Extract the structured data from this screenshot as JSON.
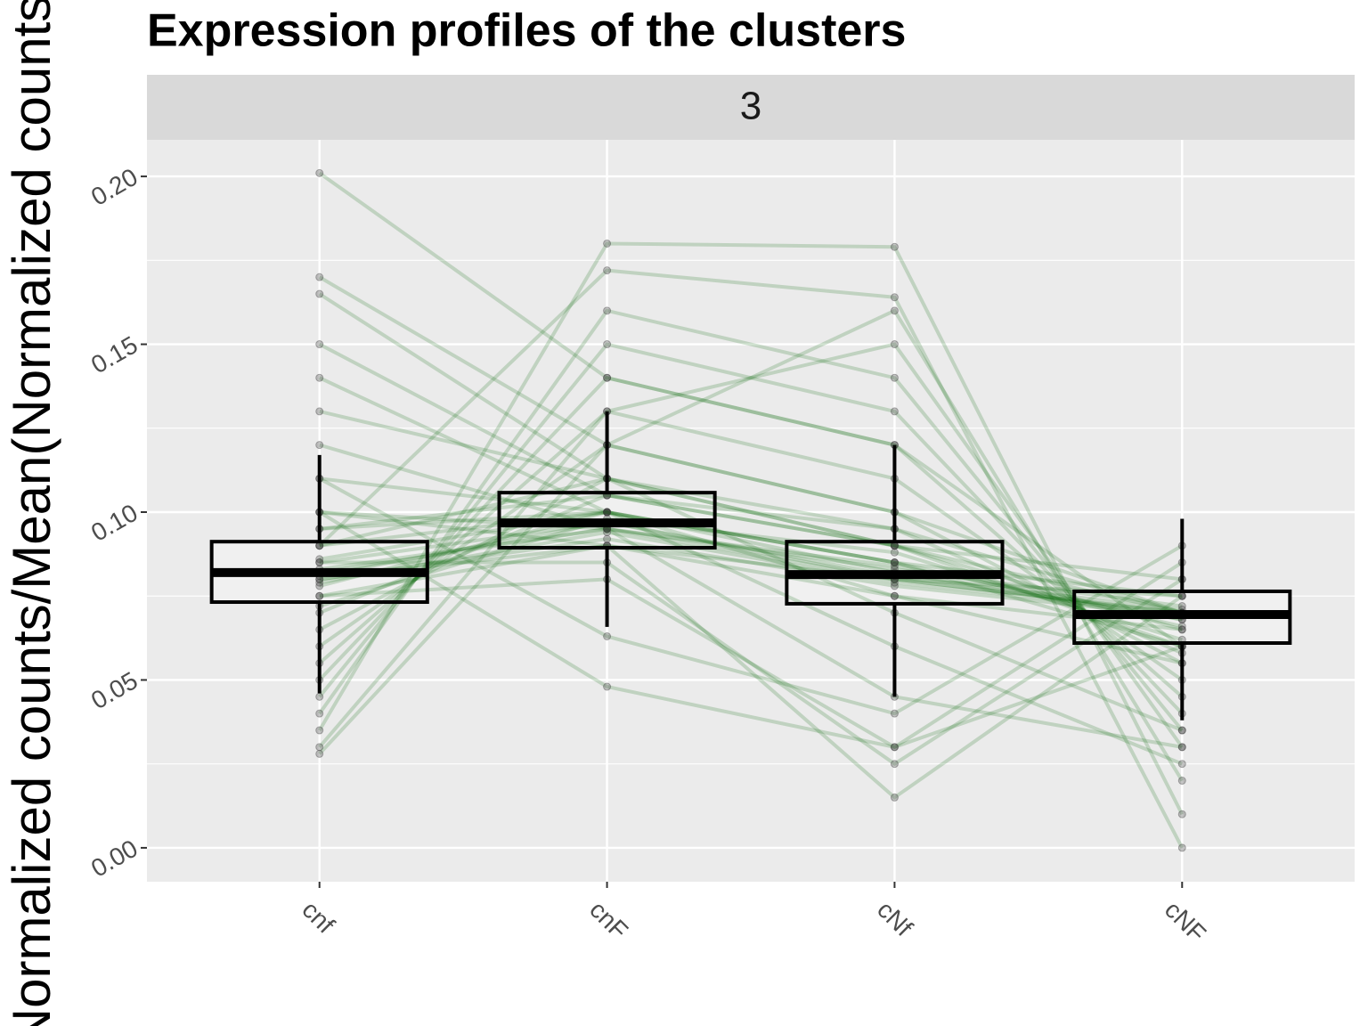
{
  "chart_data": {
    "type": "box",
    "title": "Expression profiles of the clusters",
    "facet_label": "3",
    "ylabel": "Normalized counts/Mean(Normalized counts)",
    "categories": [
      "cnf",
      "cnF",
      "cNf",
      "cNF"
    ],
    "boxes": [
      {
        "low": 0.046,
        "q1": 0.0732,
        "median": 0.082,
        "q3": 0.0912,
        "high": 0.117
      },
      {
        "low": 0.0658,
        "q1": 0.0894,
        "median": 0.0968,
        "q3": 0.1058,
        "high": 0.13
      },
      {
        "low": 0.045,
        "q1": 0.0727,
        "median": 0.0814,
        "q3": 0.0912,
        "high": 0.12
      },
      {
        "low": 0.038,
        "q1": 0.061,
        "median": 0.0695,
        "q3": 0.0764,
        "high": 0.098
      }
    ],
    "profiles": [
      [
        0.201,
        0.14,
        0.12,
        0.06
      ],
      [
        0.17,
        0.12,
        0.1,
        0.07
      ],
      [
        0.165,
        0.11,
        0.09,
        0.08
      ],
      [
        0.15,
        0.105,
        0.095,
        0.07
      ],
      [
        0.14,
        0.1,
        0.085,
        0.075
      ],
      [
        0.13,
        0.11,
        0.09,
        0.065
      ],
      [
        0.12,
        0.095,
        0.08,
        0.07
      ],
      [
        0.11,
        0.1,
        0.085,
        0.06
      ],
      [
        0.1,
        0.09,
        0.08,
        0.075
      ],
      [
        0.095,
        0.105,
        0.09,
        0.07
      ],
      [
        0.09,
        0.1,
        0.082,
        0.068
      ],
      [
        0.085,
        0.097,
        0.08,
        0.07
      ],
      [
        0.082,
        0.095,
        0.083,
        0.072
      ],
      [
        0.08,
        0.092,
        0.078,
        0.069
      ],
      [
        0.078,
        0.1,
        0.085,
        0.066
      ],
      [
        0.075,
        0.09,
        0.075,
        0.065
      ],
      [
        0.072,
        0.098,
        0.088,
        0.062
      ],
      [
        0.07,
        0.105,
        0.09,
        0.06
      ],
      [
        0.065,
        0.11,
        0.095,
        0.058
      ],
      [
        0.06,
        0.12,
        0.1,
        0.055
      ],
      [
        0.055,
        0.13,
        0.11,
        0.05
      ],
      [
        0.05,
        0.14,
        0.12,
        0.045
      ],
      [
        0.045,
        0.15,
        0.13,
        0.04
      ],
      [
        0.04,
        0.16,
        0.14,
        0.035
      ],
      [
        0.03,
        0.13,
        0.15,
        0.03
      ],
      [
        0.028,
        0.12,
        0.16,
        0.02
      ],
      [
        0.035,
        0.18,
        0.179,
        0.01
      ],
      [
        0.09,
        0.172,
        0.164,
        0.0
      ],
      [
        0.11,
        0.063,
        0.04,
        0.09
      ],
      [
        0.1,
        0.048,
        0.03,
        0.085
      ],
      [
        0.085,
        0.085,
        0.025,
        0.08
      ],
      [
        0.08,
        0.09,
        0.015,
        0.075
      ],
      [
        0.075,
        0.08,
        0.03,
        0.06
      ],
      [
        0.1,
        0.095,
        0.045,
        0.03
      ],
      [
        0.095,
        0.1,
        0.06,
        0.025
      ],
      [
        0.09,
        0.11,
        0.07,
        0.035
      ],
      [
        0.086,
        0.1,
        0.075,
        0.055
      ],
      [
        0.083,
        0.095,
        0.084,
        0.068
      ],
      [
        0.079,
        0.094,
        0.079,
        0.07
      ],
      [
        0.081,
        0.097,
        0.081,
        0.071
      ]
    ],
    "line_color": "#006400",
    "point_color": "#404040",
    "box_fill": "#f0f0f0",
    "ylim": [
      -0.0101,
      0.2109
    ],
    "yticks": [
      {
        "value": 0,
        "label": "0.00"
      },
      {
        "value": 0.05,
        "label": "0.05"
      },
      {
        "value": 0.1,
        "label": "0.10"
      },
      {
        "value": 0.15,
        "label": "0.15"
      },
      {
        "value": 0.2,
        "label": "0.20"
      }
    ],
    "y_minor_grid": [
      0.025,
      0.075,
      0.125,
      0.175
    ],
    "grid": true
  }
}
